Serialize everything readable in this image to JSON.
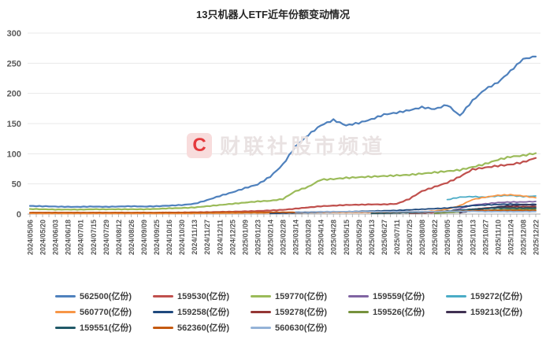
{
  "title": "13只机器人ETF近年份额变动情况",
  "watermark": {
    "logo_letter": "C",
    "text": "财联社股市频道"
  },
  "unit_suffix": "(亿份)",
  "axis": {
    "ytick_color": "#595959",
    "xtick_color": "#595959",
    "grid_color": "#e8e8e8",
    "axis_color": "#a8a8a8"
  },
  "chart_data": {
    "type": "line",
    "title": "13只机器人ETF近年份额变动情况",
    "xlabel": "",
    "ylabel": "",
    "ylim": [
      0,
      300
    ],
    "yticks": [
      0,
      50,
      100,
      150,
      200,
      250,
      300
    ],
    "grid": true,
    "legend_position": "bottom",
    "categories": [
      "2024/05/06",
      "2024/05/20",
      "2024/06/03",
      "2024/06/18",
      "2024/07/01",
      "2024/07/15",
      "2024/07/29",
      "2024/08/12",
      "2024/08/26",
      "2024/09/09",
      "2024/09/25",
      "2024/10/16",
      "2024/10/30",
      "2024/11/13",
      "2024/11/27",
      "2024/12/11",
      "2024/12/25",
      "2025/01/09",
      "2025/01/23",
      "2025/02/14",
      "2025/02/28",
      "2025/03/14",
      "2025/03/28",
      "2025/04/14",
      "2025/04/28",
      "2025/05/15",
      "2025/05/29",
      "2025/06/13",
      "2025/06/27",
      "2025/07/11",
      "2025/07/25",
      "2025/08/08",
      "2025/08/22",
      "2025/09/05",
      "2025/09/19",
      "2025/10/13",
      "2025/10/27",
      "2025/11/10",
      "2025/11/24",
      "2025/12/08",
      "2025/12/22"
    ],
    "series": [
      {
        "name": "562500",
        "color": "#4f81bd",
        "values": [
          13.5,
          13,
          12.5,
          12,
          12,
          12.5,
          12,
          12.5,
          13,
          12.5,
          13,
          14,
          15,
          17,
          23,
          30,
          36,
          43,
          49,
          62,
          82,
          112,
          131,
          147,
          156,
          147,
          151,
          157,
          165,
          168,
          172,
          177,
          174,
          181,
          163,
          188,
          207,
          218,
          237,
          257,
          261
        ]
      },
      {
        "name": "159530",
        "color": "#c0504d",
        "values": [
          2,
          2,
          2,
          2,
          2,
          2,
          2,
          2,
          2,
          2,
          2,
          2.5,
          2.5,
          3,
          3,
          3.5,
          4,
          4.5,
          5,
          6,
          7,
          9,
          11,
          13,
          14,
          15,
          15.5,
          16,
          16,
          17,
          25,
          38,
          45,
          52,
          62,
          74,
          77,
          80,
          82,
          86,
          93
        ]
      },
      {
        "name": "159770",
        "color": "#9bbb59",
        "values": [
          8.5,
          8,
          7.5,
          7.5,
          7.5,
          8,
          8,
          8,
          8,
          8,
          8.5,
          9.5,
          10,
          11,
          13,
          15,
          17,
          19,
          21,
          22,
          25,
          38,
          45,
          57,
          58,
          60,
          61,
          62,
          63,
          64,
          65,
          67,
          69,
          71,
          73,
          78,
          83,
          90,
          95,
          97,
          101
        ]
      },
      {
        "name": "159559",
        "color": "#8064a2",
        "values": [
          null,
          null,
          null,
          null,
          null,
          null,
          null,
          null,
          null,
          null,
          null,
          null,
          null,
          null,
          null,
          null,
          null,
          null,
          null,
          null,
          null,
          null,
          null,
          null,
          null,
          null,
          null,
          null,
          null,
          null,
          null,
          null,
          2,
          4,
          9,
          15,
          17,
          19,
          20,
          20,
          21
        ]
      },
      {
        "name": "159272",
        "color": "#4bacc6",
        "values": [
          null,
          null,
          null,
          null,
          null,
          null,
          null,
          null,
          null,
          null,
          null,
          null,
          null,
          null,
          null,
          null,
          null,
          null,
          null,
          null,
          null,
          null,
          null,
          null,
          null,
          null,
          null,
          null,
          null,
          null,
          null,
          null,
          null,
          24,
          28,
          29,
          28,
          30,
          31,
          29,
          30
        ]
      },
      {
        "name": "560770",
        "color": "#f79646",
        "values": [
          1,
          1,
          1,
          1,
          1,
          1,
          1,
          1,
          1,
          1,
          1,
          1,
          1,
          1,
          1.5,
          1.5,
          1.5,
          2,
          2,
          2,
          2,
          2.5,
          2.5,
          3,
          3,
          3,
          3,
          3,
          3,
          3,
          3.5,
          4,
          5,
          8,
          14,
          24,
          28,
          31,
          32,
          30,
          27
        ]
      },
      {
        "name": "159258",
        "color": "#1f497d",
        "values": [
          null,
          null,
          null,
          null,
          null,
          null,
          null,
          null,
          null,
          null,
          null,
          null,
          null,
          null,
          null,
          null,
          null,
          null,
          null,
          1,
          1.5,
          2,
          2.5,
          3,
          3.5,
          4,
          4.5,
          5,
          5.5,
          6,
          7,
          8,
          9,
          10,
          12,
          14,
          15,
          16,
          16.5,
          16,
          16
        ]
      },
      {
        "name": "159278",
        "color": "#943634",
        "values": [
          null,
          null,
          null,
          null,
          null,
          null,
          null,
          null,
          null,
          null,
          null,
          null,
          null,
          null,
          null,
          null,
          null,
          null,
          null,
          null,
          null,
          null,
          null,
          null,
          null,
          null,
          null,
          null,
          null,
          null,
          1.5,
          2,
          2.5,
          3.5,
          5,
          8,
          10,
          11,
          12,
          12,
          12
        ]
      },
      {
        "name": "159526",
        "color": "#76923c",
        "values": [
          null,
          null,
          null,
          null,
          null,
          null,
          null,
          null,
          null,
          null,
          null,
          null,
          null,
          null,
          null,
          null,
          null,
          null,
          null,
          null,
          null,
          null,
          null,
          null,
          null,
          null,
          null,
          null,
          null,
          null,
          null,
          null,
          1.5,
          2.5,
          3.5,
          5,
          6,
          7,
          7.5,
          8,
          8
        ]
      },
      {
        "name": "159213",
        "color": "#403152",
        "values": [
          null,
          null,
          null,
          null,
          null,
          null,
          null,
          null,
          null,
          null,
          null,
          null,
          null,
          null,
          null,
          null,
          null,
          null,
          null,
          null,
          null,
          null,
          null,
          null,
          null,
          null,
          null,
          null,
          null,
          null,
          null,
          null,
          null,
          null,
          2,
          6,
          9,
          12,
          14,
          15,
          15
        ]
      },
      {
        "name": "159551",
        "color": "#215968",
        "values": [
          null,
          null,
          null,
          null,
          null,
          null,
          null,
          null,
          null,
          null,
          null,
          null,
          null,
          null,
          null,
          null,
          null,
          null,
          null,
          null,
          null,
          null,
          null,
          null,
          null,
          null,
          null,
          1,
          1.5,
          2,
          2.5,
          3,
          4,
          5,
          6.5,
          8,
          9,
          10,
          10,
          10,
          10
        ]
      },
      {
        "name": "562360",
        "color": "#c55a11",
        "values": [
          2.5,
          2.5,
          2.5,
          2.5,
          2.5,
          2.5,
          2.5,
          2.5,
          2.5,
          2.5,
          2.5,
          2.5,
          2.5,
          2.5,
          2.5,
          3,
          3,
          3,
          3,
          3,
          3,
          3,
          3.5,
          3.5,
          3.5,
          3.5,
          3.5,
          3.5,
          3.5,
          3.5,
          4,
          4,
          4,
          4.5,
          5,
          5.5,
          6,
          6,
          6,
          6,
          6
        ]
      },
      {
        "name": "560630",
        "color": "#95b3d7",
        "values": [
          null,
          null,
          null,
          null,
          null,
          null,
          null,
          null,
          null,
          null,
          null,
          null,
          null,
          null,
          null,
          null,
          null,
          null,
          null,
          null,
          null,
          3.5,
          3.5,
          4,
          4,
          4,
          4,
          4,
          4,
          4,
          4,
          4,
          4,
          4.5,
          4.5,
          4.5,
          4,
          4,
          4,
          4,
          4
        ]
      }
    ]
  }
}
